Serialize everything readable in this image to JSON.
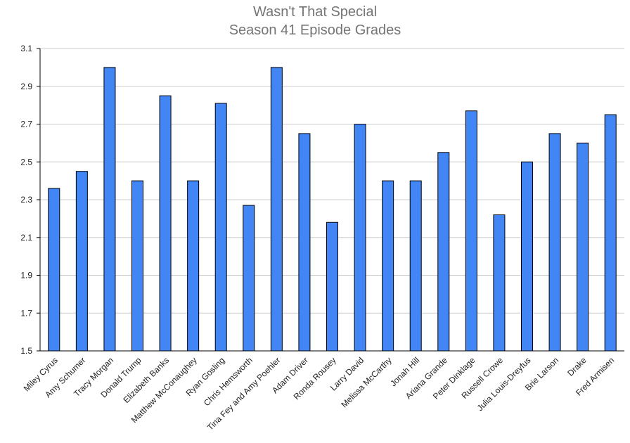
{
  "chart_data": {
    "type": "bar",
    "title": [
      "Wasn't That Special",
      "Season 41 Episode Grades"
    ],
    "xlabel": "",
    "ylabel": "",
    "ylim": [
      1.5,
      3.1
    ],
    "yticks": [
      "1.5",
      "1.7",
      "1.9",
      "2.1",
      "2.3",
      "2.5",
      "2.7",
      "2.9",
      "3.1"
    ],
    "grid": true,
    "bar_color": "#4285f4",
    "categories": [
      "Miley Cyrus",
      "Amy Schumer",
      "Tracy Morgan",
      "Donald Trump",
      "Elizabeth Banks",
      "Matthew McConaughey",
      "Ryan Gosling",
      "Chris Hemsworth",
      "Tina Fey and Amy Poehler",
      "Adam Driver",
      "Ronda Rousey",
      "Larry David",
      "Melissa McCarthy",
      "Jonah Hill",
      "Ariana Grande",
      "Peter Dinklage",
      "Russell Crowe",
      "Julia Louis-Dreyfus",
      "Brie Larson",
      "Drake",
      "Fred Armisen"
    ],
    "values": [
      2.36,
      2.45,
      3.0,
      2.4,
      2.85,
      2.4,
      2.81,
      2.27,
      3.0,
      2.65,
      2.18,
      2.7,
      2.4,
      2.4,
      2.55,
      2.77,
      2.22,
      2.5,
      2.65,
      2.6,
      2.75
    ]
  }
}
